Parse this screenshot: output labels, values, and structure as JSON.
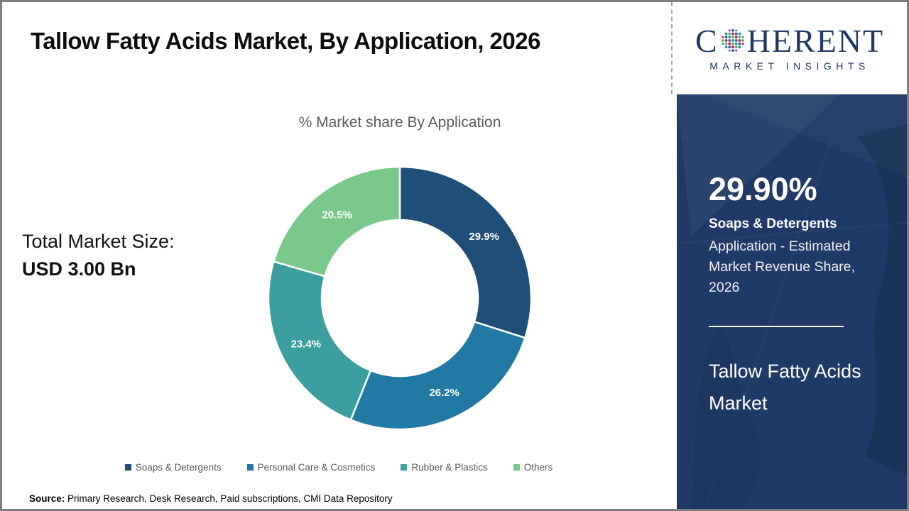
{
  "header": {
    "title": "Tallow Fatty Acids Market, By Application, 2026"
  },
  "logo": {
    "word_start": "C",
    "word_end": "HERENT",
    "subtitle": "MARKET INSIGHTS",
    "color": "#1F3864",
    "globe_dot_colors": [
      "#1b9aa0",
      "#6ab04c",
      "#c0157d",
      "#365e8d"
    ]
  },
  "chart_data": {
    "type": "pie",
    "donut": true,
    "title": "% Market share By Application",
    "categories": [
      "Soaps & Detergents",
      "Personal Care & Cosmetics",
      "Rubber & Plastics",
      "Others"
    ],
    "values": [
      29.9,
      26.2,
      23.4,
      20.5
    ],
    "labels": [
      "29.9%",
      "26.2%",
      "23.4%",
      "20.5%"
    ],
    "colors": [
      "#1F4E79",
      "#2279A3",
      "#3C9E9E",
      "#7BC88D"
    ],
    "start_angle_deg": 0,
    "legend_position": "bottom"
  },
  "main": {
    "total_market_label": "Total Market Size:",
    "total_market_value": "USD 3.00 Bn",
    "source_label": "Source:",
    "source_text": " Primary Research, Desk Research, Paid subscriptions, CMI Data Repository"
  },
  "sidebar": {
    "background_color": "#1F3A66",
    "highlight_value": "29.90%",
    "highlight_segment": "Soaps & Detergents",
    "highlight_description": "Application - Estimated Market Revenue Share, 2026",
    "footer_title": "Tallow Fatty Acids Market"
  }
}
